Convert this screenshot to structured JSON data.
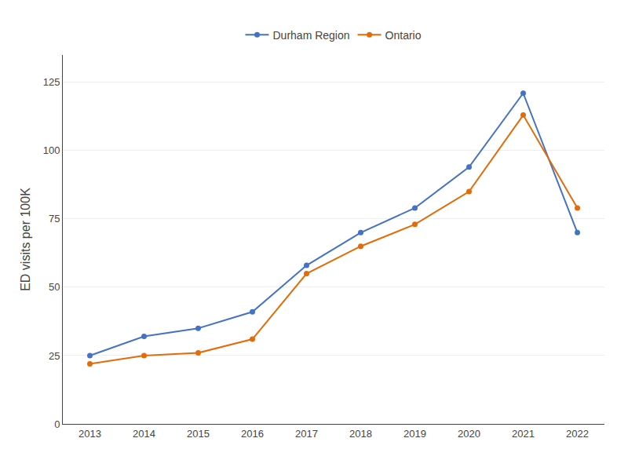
{
  "chart_data": {
    "type": "line",
    "x": [
      2013,
      2014,
      2015,
      2016,
      2017,
      2018,
      2019,
      2020,
      2021,
      2022
    ],
    "series": [
      {
        "name": "Durham Region",
        "color": "#4472C4",
        "marker": "circle",
        "values": [
          25,
          32,
          35,
          41,
          58,
          70,
          79,
          94,
          121,
          70
        ]
      },
      {
        "name": "Ontario",
        "color": "#E36C09",
        "marker": "circle",
        "values": [
          22,
          25,
          26,
          31,
          55,
          65,
          73,
          85,
          113,
          79
        ]
      }
    ],
    "ylabel": "ED visits per 100K",
    "xlim": [
      2012.5,
      2022.5
    ],
    "xticks": [
      2013,
      2014,
      2015,
      2016,
      2017,
      2018,
      2019,
      2020,
      2021,
      2022
    ],
    "ylim": [
      0,
      135
    ],
    "yticks": [
      0,
      25,
      50,
      75,
      100,
      125
    ],
    "grid": "y",
    "legend": "top"
  }
}
